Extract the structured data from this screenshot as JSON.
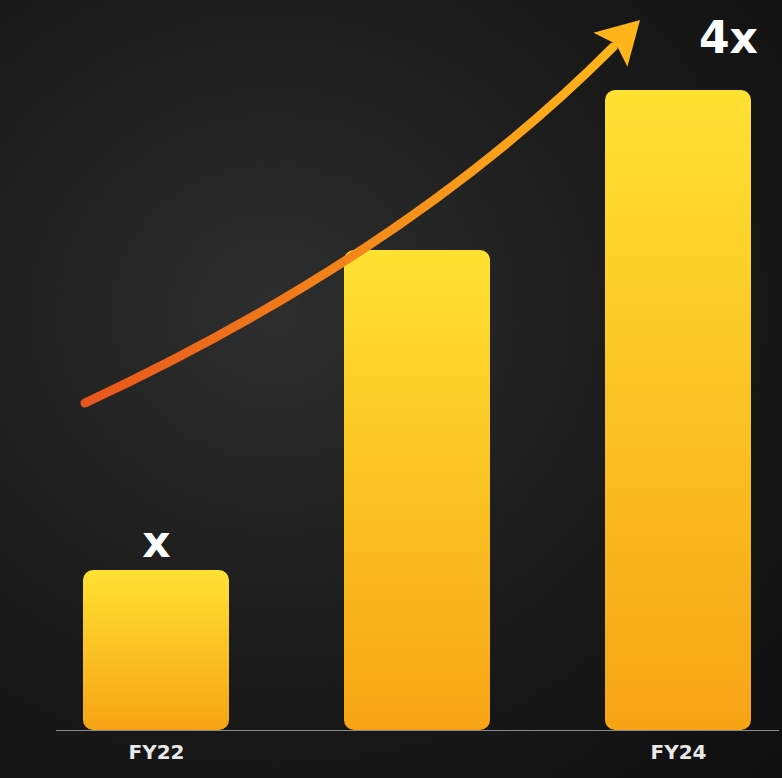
{
  "chart_data": {
    "type": "bar",
    "categories": [
      "FY22",
      null,
      "FY24"
    ],
    "values": [
      1,
      3,
      4
    ],
    "value_labels": [
      "x",
      null,
      "4x"
    ],
    "data_labels": true,
    "color": "#ffc72c",
    "ylim": [
      0,
      4.3
    ],
    "tick_labels": "x"
  }
}
